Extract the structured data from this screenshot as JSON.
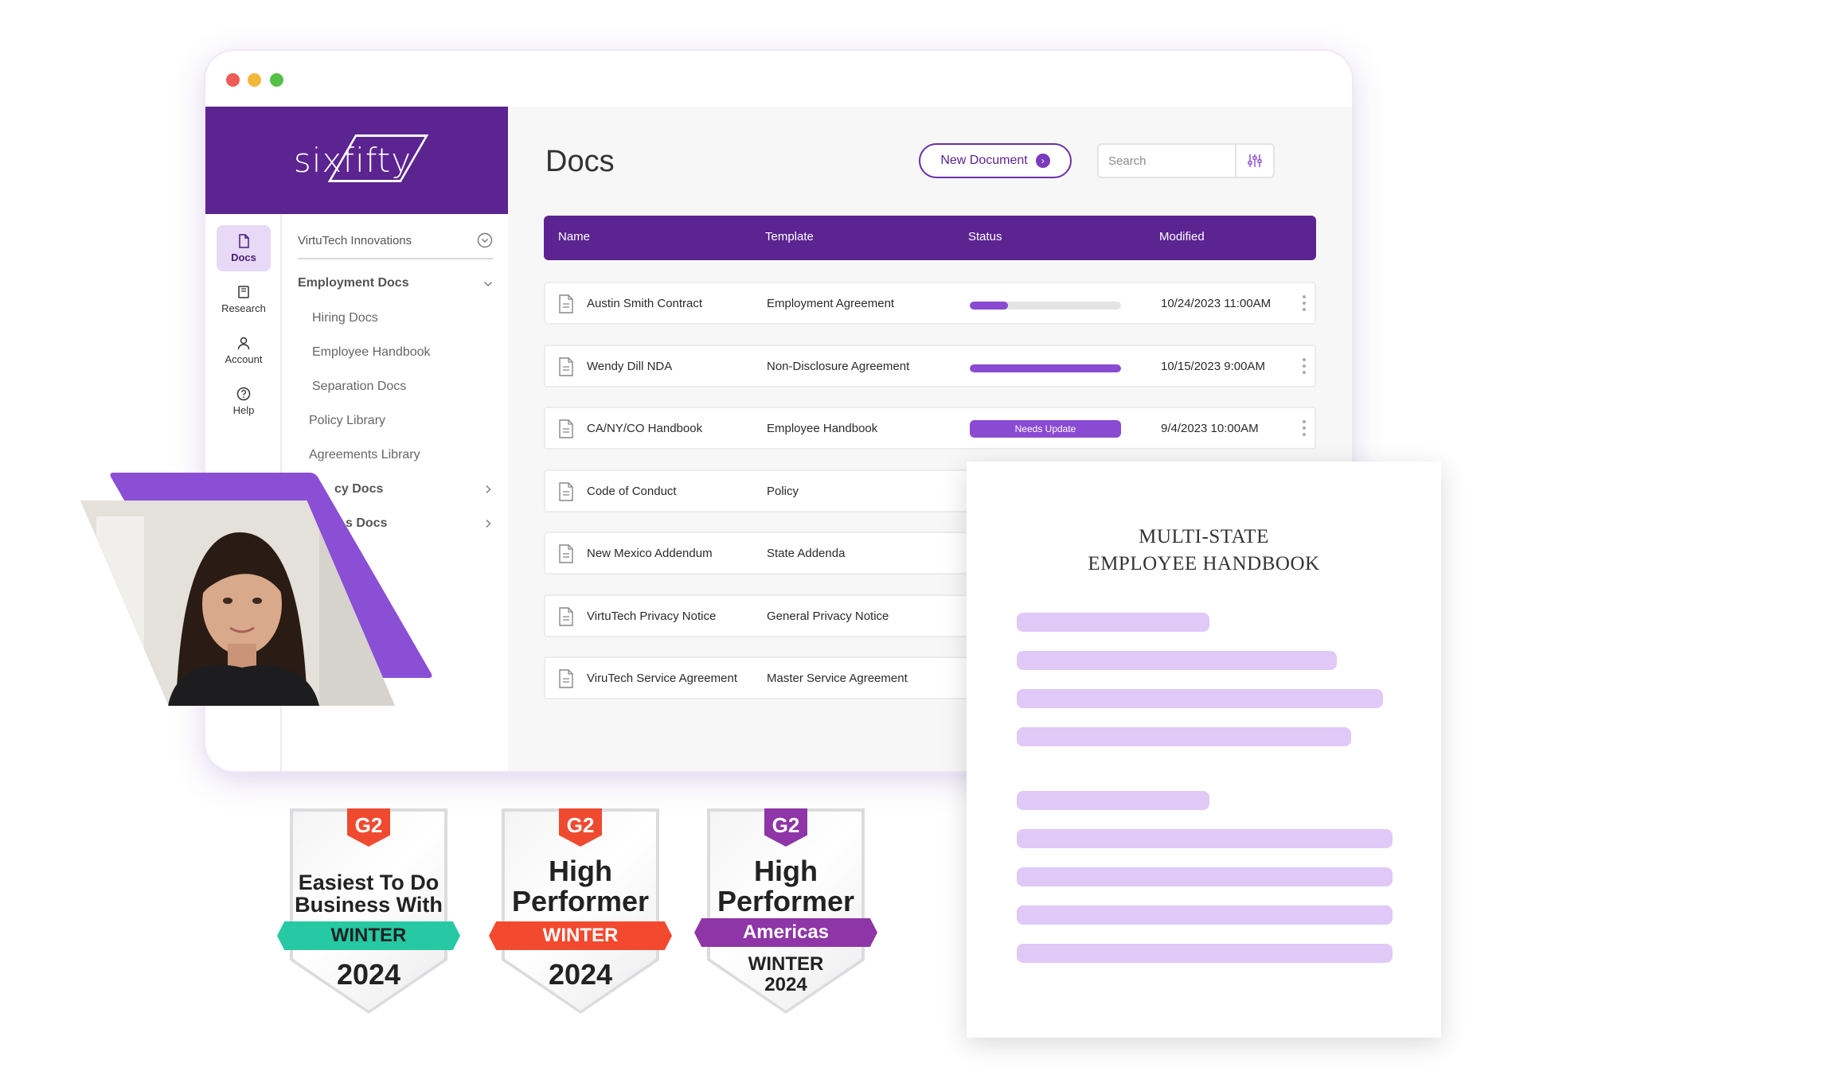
{
  "brand": {
    "logo_text": "sixfifty"
  },
  "rail": [
    {
      "label": "Docs",
      "icon": "doc-icon"
    },
    {
      "label": "Research",
      "icon": "book-icon"
    },
    {
      "label": "Account",
      "icon": "user-icon"
    },
    {
      "label": "Help",
      "icon": "help-icon"
    }
  ],
  "docnav": {
    "org": "VirtuTech Innovations",
    "section": "Employment Docs",
    "sub_items": [
      "Hiring Docs",
      "Employee Handbook",
      "Separation Docs"
    ],
    "items": [
      "Policy Library",
      "Agreements Library"
    ],
    "partial_items": [
      "cy Docs",
      "s Docs"
    ]
  },
  "main": {
    "title": "Docs",
    "new_document": "New Document",
    "search_placeholder": "Search",
    "columns": [
      "Name",
      "Template",
      "Status",
      "Modified"
    ],
    "rows": [
      {
        "name": "Austin Smith Contract",
        "template": "Employment Agreement",
        "status_progress": 0.25,
        "modified": "10/24/2023 11:00AM"
      },
      {
        "name": "Wendy Dill NDA",
        "template": "Non-Disclosure Agreement",
        "status_progress": 1.0,
        "modified": "10/15/2023 9:00AM"
      },
      {
        "name": "CA/NY/CO Handbook",
        "template": "Employee Handbook",
        "status_badge": "Needs Update",
        "modified": "9/4/2023 10:00AM"
      },
      {
        "name": "Code of Conduct",
        "template": "Policy"
      },
      {
        "name": "New Mexico Addendum",
        "template": "State Addenda"
      },
      {
        "name": "VirtuTech Privacy Notice",
        "template": "General Privacy Notice"
      },
      {
        "name": "ViruTech Service Agreement",
        "template": "Master Service Agreement"
      }
    ]
  },
  "doc_preview": {
    "title_line1": "MULTI-STATE",
    "title_line2": "EMPLOYEE HANDBOOK"
  },
  "badges": [
    {
      "logo": "G2",
      "line1": "Easiest To Do",
      "line2": "Business With",
      "ribbon": "WINTER",
      "year": "2024",
      "ribbon_color": "#26c9a3",
      "logo_color": "#ef4a2f"
    },
    {
      "logo": "G2",
      "line1": "High",
      "line2": "Performer",
      "ribbon": "WINTER",
      "year": "2024",
      "ribbon_color": "#f2492f",
      "logo_color": "#ef4a2f"
    },
    {
      "logo": "G2",
      "line1": "High",
      "line2": "Performer",
      "ribbon": "Americas",
      "season": "WINTER",
      "year": "2024",
      "ribbon_color": "#8e35a8",
      "logo_color": "#8e35a8"
    }
  ],
  "colors": {
    "brand_purple": "#5b2490",
    "accent_purple": "#8a4ad1",
    "skeleton_lavender": "#e0c8f7"
  }
}
